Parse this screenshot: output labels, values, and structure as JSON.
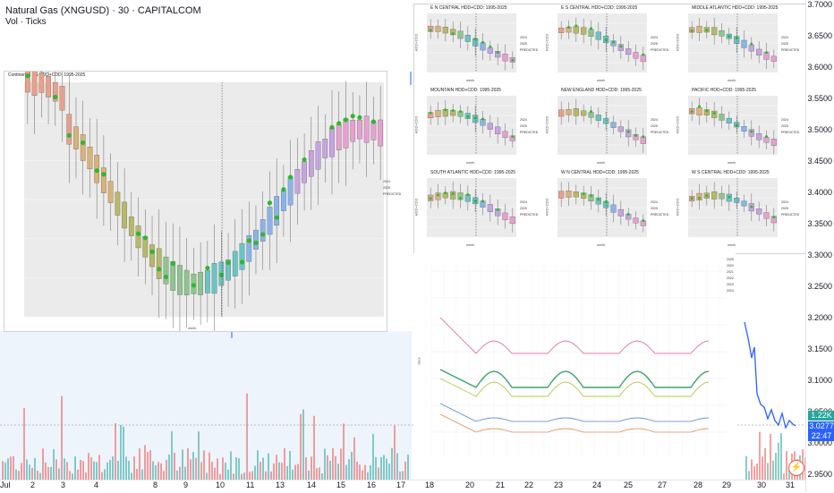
{
  "header": {
    "title": "Natural Gas (XNGUSD) · 30 · CAPITALCOM",
    "vol_label": "Vol · Ticks"
  },
  "price_axis": {
    "ticks": [
      "3.7000",
      "3.6500",
      "3.6000",
      "3.5500",
      "3.5000",
      "3.4500",
      "3.4000",
      "3.3500",
      "3.3000",
      "3.2500",
      "3.2000",
      "3.1500",
      "3.1000",
      "3.0500",
      "3.0000",
      "2.9500"
    ],
    "volume_badge": "1.22K",
    "price_badge": "3.0277",
    "countdown_badge": "22:47"
  },
  "time_axis": {
    "ticks": [
      "Jul",
      "2",
      "3",
      "4",
      "8",
      "9",
      "10",
      "11",
      "13",
      "14",
      "15",
      "16",
      "17",
      "18",
      "20",
      "21",
      "22",
      "23",
      "24",
      "25",
      "27",
      "28",
      "29",
      "30",
      "31"
    ]
  },
  "colors": {
    "green": "#26a69a",
    "red": "#ef5350",
    "blue_line": "#2962ff",
    "price_badge": "#2962ff",
    "volume_badge": "#26a69a"
  },
  "main_chart": {
    "title": "Continental US HDD+CDD: 1995-2025",
    "xlabel": "week",
    "legend": [
      "2024",
      "2025",
      "PREDICTED"
    ]
  },
  "regional_panels": [
    {
      "title": "E N CENTRAL HDD+CDD: 1995-2025"
    },
    {
      "title": "E S CENTRAL HDD+CDD: 1995-2025"
    },
    {
      "title": "MIDDLE ATLANTIC HDD+CDD: 1995-2025"
    },
    {
      "title": "MOUNTAIN HDD+CDD: 1995-2025"
    },
    {
      "title": "NEW ENGLAND HDD+CDD: 1995-2025"
    },
    {
      "title": "PACIFIC HDD+CDD: 1995-2025"
    },
    {
      "title": "SOUTH ATLANTIC HDD+CDD: 1995-2025"
    },
    {
      "title": "W N CENTRAL HDD+CDD: 1995-2025"
    },
    {
      "title": "W S CENTRAL HDD+CDD: 1995-2025"
    }
  ],
  "regional_common": {
    "xlabel": "week",
    "ylabel": "HDD+CDD",
    "legend": [
      "2024",
      "2025",
      "PREDICTED"
    ]
  },
  "forecast_chart": {
    "ylabel": "dscs",
    "legend": [
      "2025",
      "2020",
      "2021",
      "2022",
      "2023",
      "2024"
    ]
  }
}
